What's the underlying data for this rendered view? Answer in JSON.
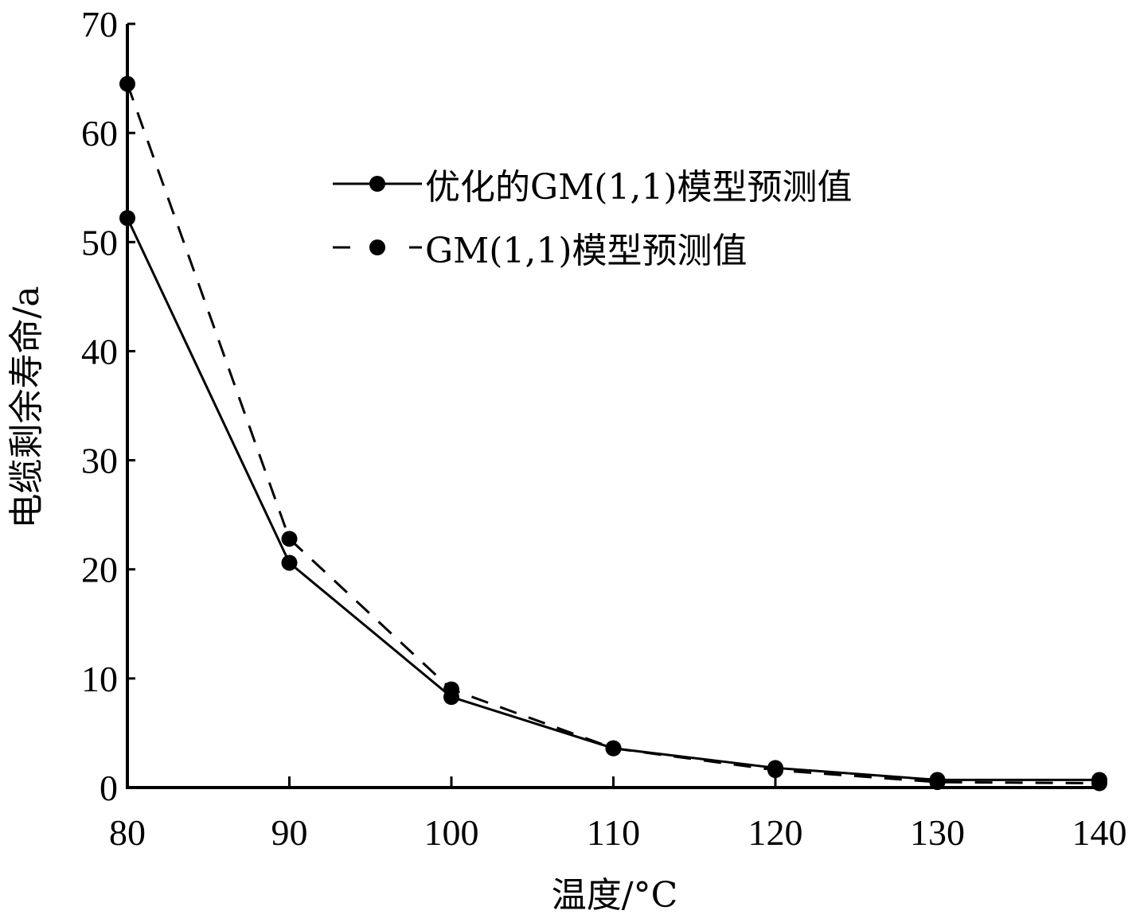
{
  "chart_data": {
    "type": "line",
    "title": "",
    "xlabel": "温度/°C",
    "ylabel": "电缆剩余寿命/a",
    "x": [
      80,
      90,
      100,
      110,
      120,
      130,
      140
    ],
    "xticks": [
      "80",
      "90",
      "100",
      "110",
      "120",
      "130",
      "140"
    ],
    "yticks": [
      "0",
      "10",
      "20",
      "30",
      "40",
      "50",
      "60",
      "70"
    ],
    "xlim": [
      80,
      140
    ],
    "ylim": [
      0,
      70
    ],
    "grid": false,
    "legend_position": "upper right (inside, near top center)",
    "series": [
      {
        "name": "优化的GM(1,1)模型预测值",
        "line_style": "solid",
        "marker": "filled-circle",
        "color": "#000000",
        "values": [
          52.2,
          20.6,
          8.3,
          3.6,
          1.8,
          0.7,
          0.7
        ]
      },
      {
        "name": "GM(1,1)模型预测值",
        "line_style": "dashed",
        "marker": "filled-circle",
        "color": "#000000",
        "values": [
          64.5,
          22.8,
          9.0,
          3.6,
          1.6,
          0.5,
          0.4
        ]
      }
    ]
  }
}
